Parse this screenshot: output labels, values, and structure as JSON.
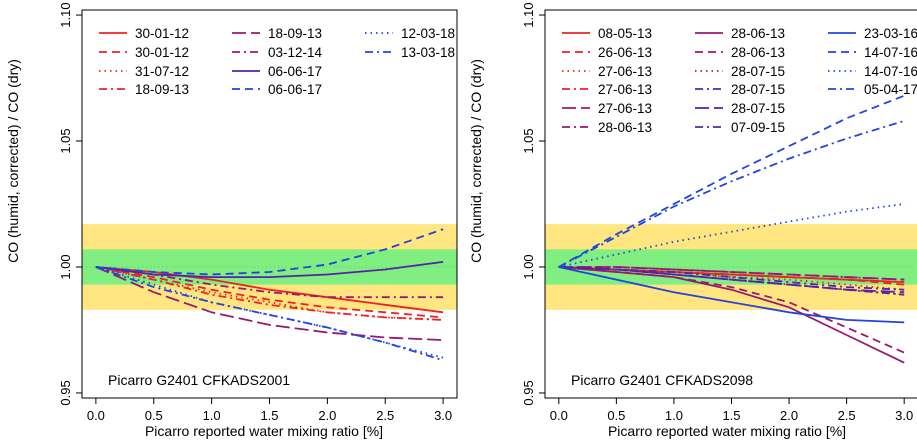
{
  "chart_data": [
    {
      "type": "line",
      "ylabel": "CO (humid, corrected) / CO (dry)",
      "xlabel": "Picarro reported water mixing ratio [%]",
      "annotation": "Picarro G2401 CFKADS2001",
      "xlim": [
        -0.12,
        3.12
      ],
      "ylim": [
        0.948,
        1.102
      ],
      "xticks": [
        0.0,
        0.5,
        1.0,
        1.5,
        2.0,
        2.5,
        3.0
      ],
      "xtick_labels": [
        "0.0",
        "0.5",
        "1.0",
        "1.5",
        "2.0",
        "2.5",
        "3.0"
      ],
      "yticks": [
        0.95,
        1.0,
        1.05,
        1.1
      ],
      "ytick_labels": [
        "0.95",
        "1.00",
        "1.05",
        "1.10"
      ],
      "bands": [
        {
          "y0": 0.983,
          "y1": 1.017,
          "color": "#ffe680"
        },
        {
          "y0": 0.993,
          "y1": 1.007,
          "color": "#80ee80"
        }
      ],
      "reference_line": {
        "y": 1.0,
        "color": "#55cc55"
      },
      "legend_position": "top",
      "legend_columns": 3,
      "series": [
        {
          "name": "30-01-12",
          "color": "#ee2222",
          "dash": "solid",
          "x": [
            0,
            0.5,
            1,
            1.5,
            2,
            2.5,
            3
          ],
          "y": [
            1.0,
            0.998,
            0.995,
            0.991,
            0.988,
            0.985,
            0.982
          ]
        },
        {
          "name": "30-01-12",
          "color": "#ee2222",
          "dash": "dash",
          "x": [
            0,
            0.5,
            1,
            1.5,
            2,
            2.5,
            3
          ],
          "y": [
            1.0,
            0.996,
            0.991,
            0.987,
            0.984,
            0.982,
            0.98
          ]
        },
        {
          "name": "31-07-12",
          "color": "#ee2222",
          "dash": "dot",
          "x": [
            0,
            0.5,
            1,
            1.5,
            2,
            2.5,
            3
          ],
          "y": [
            1.0,
            0.995,
            0.99,
            0.986,
            0.982,
            0.98,
            0.979
          ]
        },
        {
          "name": "18-09-13",
          "color": "#ee2222",
          "dash": "dashdot",
          "x": [
            0,
            0.5,
            1,
            1.5,
            2,
            2.5,
            3
          ],
          "y": [
            1.0,
            0.995,
            0.989,
            0.985,
            0.982,
            0.98,
            0.979
          ]
        },
        {
          "name": "18-09-13",
          "color": "#9a1870",
          "dash": "longdash",
          "x": [
            0,
            0.5,
            1,
            1.5,
            2,
            2.5,
            3
          ],
          "y": [
            1.0,
            0.99,
            0.982,
            0.977,
            0.974,
            0.972,
            0.971
          ]
        },
        {
          "name": "03-12-14",
          "color": "#9a1870",
          "dash": "dashdot",
          "x": [
            0,
            0.5,
            1,
            1.5,
            2,
            2.5,
            3
          ],
          "y": [
            1.0,
            0.997,
            0.993,
            0.99,
            0.988,
            0.988,
            0.988
          ]
        },
        {
          "name": "06-06-17",
          "color": "#5522aa",
          "dash": "solid",
          "x": [
            0,
            0.5,
            1,
            1.5,
            2,
            2.5,
            3
          ],
          "y": [
            1.0,
            0.997,
            0.996,
            0.996,
            0.997,
            0.999,
            1.002
          ]
        },
        {
          "name": "06-06-17",
          "color": "#2244dd",
          "dash": "dash",
          "x": [
            0,
            0.5,
            1,
            1.5,
            2,
            2.5,
            3
          ],
          "y": [
            1.0,
            0.998,
            0.997,
            0.998,
            1.001,
            1.007,
            1.015
          ]
        },
        {
          "name": "12-03-18",
          "color": "#2244dd",
          "dash": "dot",
          "x": [
            0,
            0.5,
            1,
            1.5,
            2,
            2.5,
            3
          ],
          "y": [
            1.0,
            0.993,
            0.986,
            0.981,
            0.976,
            0.97,
            0.964
          ]
        },
        {
          "name": "13-03-18",
          "color": "#2244dd",
          "dash": "dashdot",
          "x": [
            0,
            0.5,
            1,
            1.5,
            2,
            2.5,
            3
          ],
          "y": [
            1.0,
            0.992,
            0.986,
            0.981,
            0.976,
            0.97,
            0.963
          ]
        }
      ]
    },
    {
      "type": "line",
      "ylabel": "CO (humid, corrected) / CO (dry)",
      "xlabel": "Picarro reported water mixing ratio [%]",
      "annotation": "Picarro G2401 CFKADS2098",
      "xlim": [
        -0.12,
        3.12
      ],
      "ylim": [
        0.948,
        1.102
      ],
      "xticks": [
        0.0,
        0.5,
        1.0,
        1.5,
        2.0,
        2.5,
        3.0
      ],
      "xtick_labels": [
        "0.0",
        "0.5",
        "1.0",
        "1.5",
        "2.0",
        "2.5",
        "3.0"
      ],
      "yticks": [
        0.95,
        1.0,
        1.05,
        1.1
      ],
      "ytick_labels": [
        "0.95",
        "1.00",
        "1.05",
        "1.10"
      ],
      "bands": [
        {
          "y0": 0.983,
          "y1": 1.017,
          "color": "#ffe680"
        },
        {
          "y0": 0.993,
          "y1": 1.007,
          "color": "#80ee80"
        }
      ],
      "reference_line": {
        "y": 1.0,
        "color": "#55cc55"
      },
      "legend_position": "top",
      "legend_columns": 3,
      "series": [
        {
          "name": "08-05-13",
          "color": "#ee2222",
          "dash": "solid",
          "x": [
            0,
            0.5,
            1,
            1.5,
            2,
            2.5,
            3
          ],
          "y": [
            1.0,
            0.999,
            0.998,
            0.997,
            0.996,
            0.995,
            0.994
          ]
        },
        {
          "name": "26-06-13",
          "color": "#ee2222",
          "dash": "dash",
          "x": [
            0,
            0.5,
            1,
            1.5,
            2,
            2.5,
            3
          ],
          "y": [
            1.0,
            0.999,
            0.998,
            0.997,
            0.996,
            0.995,
            0.993
          ]
        },
        {
          "name": "27-06-13",
          "color": "#ee2222",
          "dash": "dot",
          "x": [
            0,
            0.5,
            1,
            1.5,
            2,
            2.5,
            3
          ],
          "y": [
            1.0,
            0.999,
            0.998,
            0.996,
            0.995,
            0.993,
            0.991
          ]
        },
        {
          "name": "27-06-13",
          "color": "#ee2222",
          "dash": "dashdot",
          "x": [
            0,
            0.5,
            1,
            1.5,
            2,
            2.5,
            3
          ],
          "y": [
            1.0,
            0.999,
            0.998,
            0.997,
            0.996,
            0.995,
            0.994
          ]
        },
        {
          "name": "27-06-13",
          "color": "#9a1870",
          "dash": "longdash",
          "x": [
            0,
            0.5,
            1,
            1.5,
            2,
            2.5,
            3
          ],
          "y": [
            1.0,
            1.0,
            0.999,
            0.998,
            0.997,
            0.996,
            0.995
          ]
        },
        {
          "name": "28-06-13",
          "color": "#9a1870",
          "dash": "dashdot",
          "x": [
            0,
            0.5,
            1,
            1.5,
            2,
            2.5,
            3
          ],
          "y": [
            1.0,
            1.0,
            0.999,
            0.998,
            0.997,
            0.996,
            0.995
          ]
        },
        {
          "name": "28-06-13",
          "color": "#9a1870",
          "dash": "solid",
          "x": [
            0,
            0.5,
            1,
            1.5,
            2,
            2.5,
            3
          ],
          "y": [
            1.0,
            0.998,
            0.996,
            0.991,
            0.984,
            0.973,
            0.962
          ]
        },
        {
          "name": "28-06-13",
          "color": "#9a1870",
          "dash": "dash",
          "x": [
            0,
            0.5,
            1,
            1.5,
            2,
            2.5,
            3
          ],
          "y": [
            1.0,
            0.998,
            0.996,
            0.992,
            0.986,
            0.976,
            0.966
          ]
        },
        {
          "name": "28-07-15",
          "color": "#9a1870",
          "dash": "dot",
          "x": [
            0,
            0.5,
            1,
            1.5,
            2,
            2.5,
            3
          ],
          "y": [
            1.0,
            0.999,
            0.997,
            0.995,
            0.993,
            0.991,
            0.989
          ]
        },
        {
          "name": "28-07-15",
          "color": "#5522aa",
          "dash": "dashdot",
          "x": [
            0,
            0.5,
            1,
            1.5,
            2,
            2.5,
            3
          ],
          "y": [
            1.0,
            0.999,
            0.997,
            0.995,
            0.993,
            0.991,
            0.989
          ]
        },
        {
          "name": "28-07-15",
          "color": "#5522aa",
          "dash": "longdash",
          "x": [
            0,
            0.5,
            1,
            1.5,
            2,
            2.5,
            3
          ],
          "y": [
            1.0,
            0.999,
            0.997,
            0.995,
            0.993,
            0.991,
            0.99
          ]
        },
        {
          "name": "07-09-15",
          "color": "#5522aa",
          "dash": "dashdot",
          "x": [
            0,
            0.5,
            1,
            1.5,
            2,
            2.5,
            3
          ],
          "y": [
            1.0,
            0.999,
            0.998,
            0.996,
            0.994,
            0.992,
            0.991
          ]
        },
        {
          "name": "23-03-16",
          "color": "#2244dd",
          "dash": "solid",
          "x": [
            0,
            0.5,
            1,
            1.5,
            2,
            2.5,
            3
          ],
          "y": [
            1.0,
            0.995,
            0.99,
            0.986,
            0.982,
            0.979,
            0.978
          ]
        },
        {
          "name": "14-07-16",
          "color": "#2244dd",
          "dash": "dash",
          "x": [
            0,
            0.5,
            1,
            1.5,
            2,
            2.5,
            3
          ],
          "y": [
            1.0,
            1.013,
            1.025,
            1.037,
            1.048,
            1.059,
            1.068
          ]
        },
        {
          "name": "14-07-16",
          "color": "#2244dd",
          "dash": "dot",
          "x": [
            0,
            0.5,
            1,
            1.5,
            2,
            2.5,
            3
          ],
          "y": [
            1.0,
            1.005,
            1.01,
            1.014,
            1.018,
            1.022,
            1.025
          ]
        },
        {
          "name": "05-04-17",
          "color": "#2244dd",
          "dash": "dashdot",
          "x": [
            0,
            0.5,
            1,
            1.5,
            2,
            2.5,
            3
          ],
          "y": [
            1.0,
            1.012,
            1.024,
            1.034,
            1.043,
            1.051,
            1.058
          ]
        }
      ]
    }
  ]
}
